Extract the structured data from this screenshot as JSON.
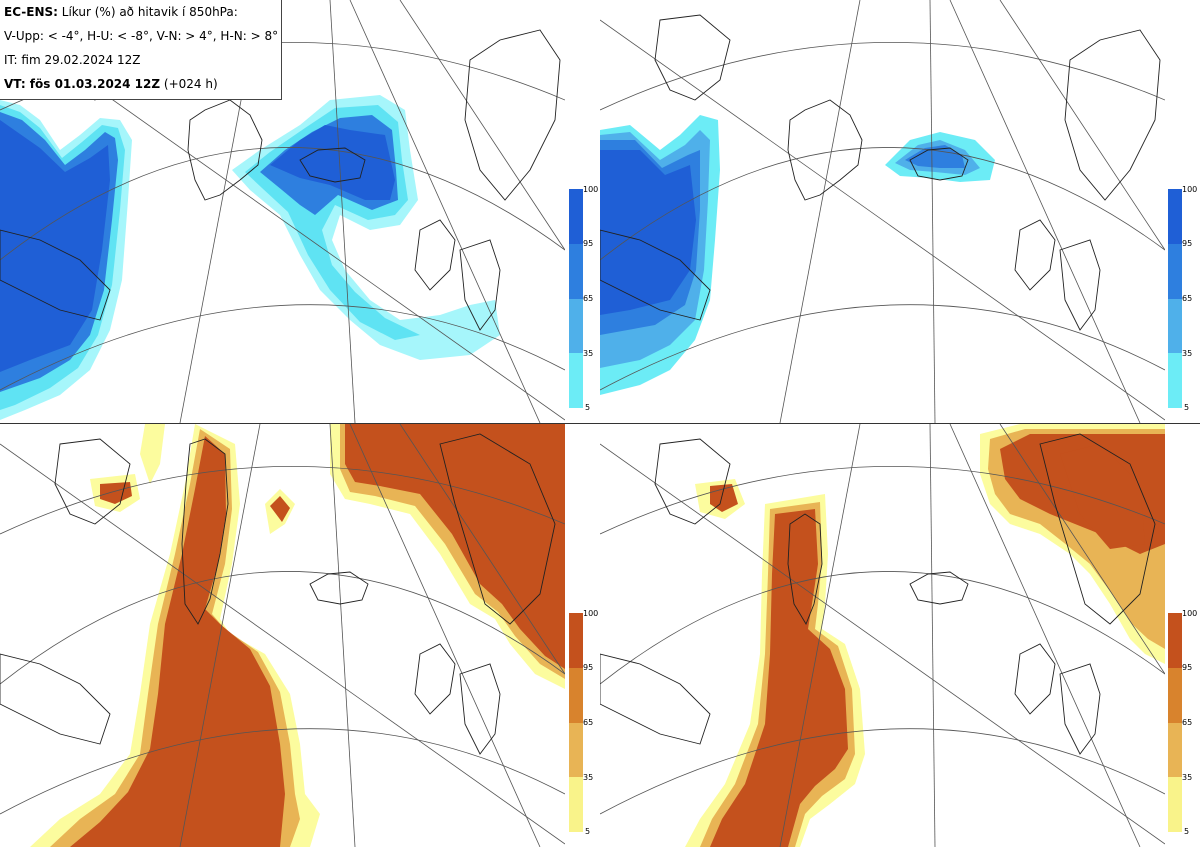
{
  "header": {
    "model_label": "EC-ENS:",
    "title_text": "Líkur (%) að hitavik í 850hPa:",
    "thresholds": "V-Upp: < -4°, H-U: < -8°, V-N: > 4°, H-N: > 8°",
    "init_time": "IT: fim 29.02.2024 12Z",
    "valid_label": "VT: fös 01.03.2024 12Z",
    "lead": "(+024 h)"
  },
  "legend_cold": {
    "ticks": [
      "100",
      "95",
      "65",
      "35",
      "5"
    ],
    "colors": [
      "#1f5fd6",
      "#2e7fdf",
      "#4fb0ea",
      "#5fe3f3",
      "#a6f6fb"
    ]
  },
  "legend_warm": {
    "ticks": [
      "100",
      "95",
      "65",
      "35",
      "5"
    ],
    "colors": [
      "#c4511d",
      "#d8832d",
      "#e8b455",
      "#f5e270",
      "#fcfc9e"
    ]
  },
  "panels": [
    {
      "id": "upper-left",
      "category": "V-Upp",
      "scheme": "cold"
    },
    {
      "id": "upper-right",
      "category": "H-U",
      "scheme": "cold"
    },
    {
      "id": "lower-left",
      "category": "V-N",
      "scheme": "warm"
    },
    {
      "id": "lower-right",
      "category": "H-N",
      "scheme": "warm"
    }
  ]
}
